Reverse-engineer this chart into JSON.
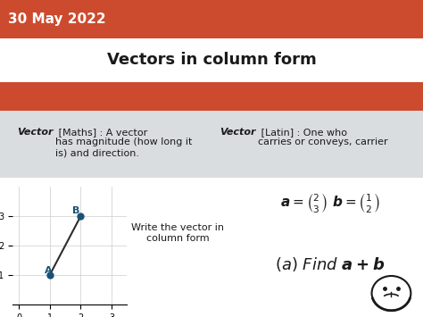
{
  "date_text": "30 May 2022",
  "title": "Vectors in column form",
  "header_bg": "#cc4b2e",
  "header_text_color": "#ffffff",
  "title_bg": "#ffffff",
  "definition_bg": "#d9dde0",
  "content_bg": "#ffffff",
  "def_left_italic": "Vector",
  "def_left_rest": " [Maths] : A vector\nhas magnitude (how long it\nis) and direction.",
  "def_right_italic": "Vector",
  "def_right_rest": " [Latin] : One who\ncarries or conveys, carrier",
  "graph_A": [
    1,
    1
  ],
  "graph_B": [
    2,
    3
  ],
  "graph_xlim": [
    -0.2,
    3.5
  ],
  "graph_ylim": [
    0,
    4
  ],
  "graph_xticks": [
    0,
    1,
    2,
    3
  ],
  "graph_yticks": [
    1,
    2,
    3
  ],
  "write_text": "Write the vector in\ncolumn form",
  "line_color": "#2d2d2d",
  "point_color": "#1a5276",
  "label_color": "#1a5276",
  "text_color": "#1a1a1a"
}
